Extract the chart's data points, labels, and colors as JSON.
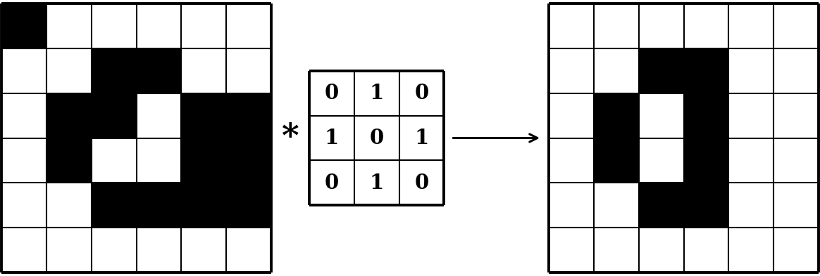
{
  "left_grid": [
    [
      1,
      0,
      0,
      0,
      0,
      0
    ],
    [
      0,
      0,
      1,
      1,
      1,
      0
    ],
    [
      0,
      1,
      1,
      0,
      1,
      1
    ],
    [
      0,
      1,
      0,
      0,
      1,
      1
    ],
    [
      0,
      0,
      1,
      1,
      1,
      1
    ],
    [
      0,
      0,
      0,
      0,
      0,
      0
    ]
  ],
  "kernel_labels": [
    [
      "0",
      "1",
      "0"
    ],
    [
      "1",
      "0",
      "1"
    ],
    [
      "0",
      "1",
      "0"
    ]
  ],
  "right_grid": [
    [
      0,
      0,
      0,
      0,
      0,
      0
    ],
    [
      0,
      0,
      1,
      1,
      0,
      0
    ],
    [
      0,
      1,
      0,
      1,
      0,
      0
    ],
    [
      0,
      1,
      0,
      1,
      0,
      0
    ],
    [
      0,
      0,
      1,
      1,
      0,
      0
    ],
    [
      0,
      0,
      0,
      0,
      0,
      0
    ]
  ],
  "bg_color": "#ffffff",
  "black_color": "#000000",
  "white_color": "#ffffff",
  "grid_line_color": "#000000",
  "grid_lw": 1.5,
  "border_lw": 2.8,
  "kernel_font_size": 21,
  "asterisk_fontsize": 34
}
